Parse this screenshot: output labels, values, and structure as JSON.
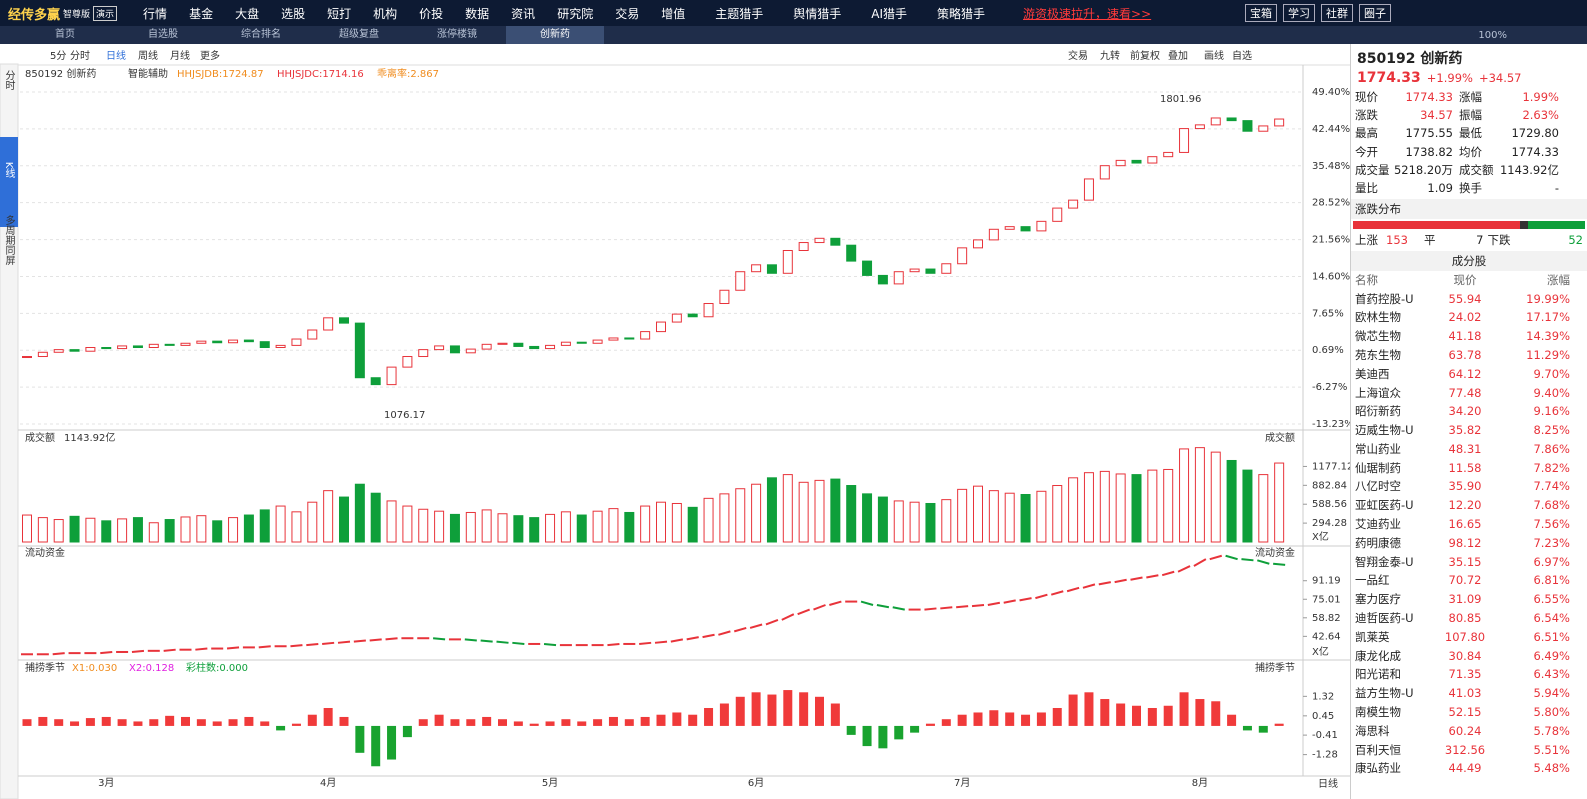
{
  "top_menu": {
    "logo": "经传多赢",
    "edition": "智尊版",
    "demo": "演示",
    "items": [
      "行情",
      "基金",
      "大盘",
      "选股",
      "短打",
      "机构",
      "价投",
      "数据",
      "资讯",
      "研究院",
      "交易",
      "增值",
      "主题猎手",
      "舆情猎手",
      "AI猎手",
      "策略猎手"
    ],
    "promo": "游资极速拉升，速看>>",
    "buttons": [
      "宝箱",
      "学习",
      "社群",
      "圈子"
    ]
  },
  "tabs": {
    "items": [
      "首页",
      "自选股",
      "综合排名",
      "超级复盘",
      "涨停楼镜",
      "创新药"
    ],
    "zoom": "100%"
  },
  "toolbar": {
    "left": [
      "5分",
      "分时",
      "日线",
      "周线",
      "月线",
      "更多"
    ],
    "right": [
      "交易",
      "九转",
      "前复权",
      "叠加",
      "画线",
      "自选"
    ]
  },
  "sidebar": [
    "分时",
    "K线",
    "多周期同屏"
  ],
  "chart_data": [
    {
      "type": "candlestick",
      "title": "850192 创新药",
      "assist": "智能辅助",
      "indicators": [
        {
          "label": "HHJSJDB:1724.87",
          "color": "#f08c1e"
        },
        {
          "label": "HHJSJDC:1714.16",
          "color": "#e8333a"
        },
        {
          "label": "乖离率:2.867",
          "color": "#f08c1e"
        }
      ],
      "annotations": [
        "1801.96",
        "1076.17"
      ],
      "period": "日线",
      "categories": [
        null,
        null,
        null,
        null,
        null,
        "3月",
        null,
        null,
        null,
        null,
        null,
        null,
        null,
        null,
        null,
        null,
        null,
        null,
        null,
        "4月",
        null,
        null,
        null,
        null,
        null,
        null,
        null,
        null,
        null,
        null,
        null,
        null,
        null,
        "5月",
        null,
        null,
        null,
        null,
        null,
        null,
        null,
        null,
        null,
        null,
        null,
        null,
        "6月",
        null,
        null,
        null,
        null,
        null,
        null,
        null,
        null,
        null,
        null,
        null,
        null,
        "7月",
        null,
        null,
        null,
        null,
        null,
        null,
        null,
        null,
        null,
        null,
        null,
        null,
        null,
        null,
        "8月",
        null,
        null,
        null,
        null,
        null
      ],
      "values": [
        -0.5,
        0.3,
        0.8,
        0.5,
        1.2,
        1.0,
        1.5,
        1.2,
        1.8,
        1.6,
        2.0,
        2.4,
        2.1,
        2.6,
        2.3,
        1.2,
        1.6,
        2.8,
        4.5,
        6.8,
        5.8,
        -4.5,
        -5.8,
        -2.5,
        -0.5,
        0.8,
        1.5,
        0.2,
        0.9,
        1.8,
        2.0,
        1.4,
        1.0,
        1.6,
        2.2,
        2.0,
        2.6,
        3.0,
        2.8,
        4.2,
        6.0,
        7.5,
        7.0,
        9.5,
        12.0,
        15.5,
        16.8,
        15.2,
        19.5,
        21.0,
        21.8,
        20.5,
        17.5,
        14.8,
        13.2,
        15.5,
        16.0,
        15.2,
        17.0,
        20.0,
        21.5,
        23.5,
        24.0,
        23.2,
        25.0,
        27.5,
        29.0,
        33.0,
        35.5,
        36.5,
        36.0,
        37.2,
        38.0,
        42.5,
        43.2,
        44.5,
        44.0,
        42.0,
        43.0,
        44.3
      ],
      "up_color": "#e8333a",
      "down_color": "#0e9f3a",
      "ylim": [
        -13.23,
        49.4
      ],
      "yticks": [
        {
          "value": 49.4,
          "label": "49.40%"
        },
        {
          "value": 42.44,
          "label": "42.44%"
        },
        {
          "value": 35.48,
          "label": "35.48%"
        },
        {
          "value": 28.52,
          "label": "28.52%"
        },
        {
          "value": 21.56,
          "label": "21.56%"
        },
        {
          "value": 14.6,
          "label": "14.60%"
        },
        {
          "value": 7.65,
          "label": "7.65%"
        },
        {
          "value": 0.69,
          "label": "0.69%"
        },
        {
          "value": -6.27,
          "label": "-6.27%"
        },
        {
          "value": -13.23,
          "label": "-13.23%"
        }
      ],
      "grid": true
    },
    {
      "type": "bar",
      "title": "成交额",
      "value_text": "1143.92亿",
      "side_title": "成交额",
      "unit": "X亿",
      "values": [
        420,
        380,
        350,
        400,
        370,
        330,
        360,
        380,
        300,
        350,
        390,
        410,
        330,
        380,
        420,
        500,
        560,
        470,
        620,
        800,
        700,
        900,
        760,
        640,
        560,
        510,
        480,
        430,
        460,
        500,
        440,
        410,
        380,
        430,
        470,
        420,
        480,
        520,
        460,
        560,
        620,
        600,
        540,
        680,
        750,
        830,
        900,
        1000,
        1050,
        930,
        960,
        980,
        880,
        750,
        700,
        640,
        620,
        600,
        660,
        820,
        870,
        800,
        760,
        740,
        790,
        880,
        1000,
        1080,
        1100,
        1060,
        1050,
        1120,
        1130,
        1450,
        1470,
        1400,
        1270,
        1120,
        1050,
        1230
      ],
      "ylim": [
        0,
        1480
      ],
      "yticks": [
        294.28,
        588.56,
        882.84,
        1177.12
      ]
    },
    {
      "type": "dash-line",
      "title": "流动资金",
      "side_title": "流动资金",
      "unit": "X亿",
      "values": [
        27,
        27,
        28,
        28,
        28,
        29,
        29,
        30,
        30,
        31,
        31,
        32,
        32,
        33,
        33,
        34,
        34,
        35,
        36,
        37,
        38,
        39,
        40,
        41,
        41,
        41,
        40,
        40,
        39,
        38,
        37,
        36,
        36,
        35,
        35,
        35,
        35,
        36,
        36,
        37,
        38,
        40,
        42,
        44,
        47,
        50,
        53,
        57,
        62,
        66,
        70,
        73,
        73,
        70,
        68,
        66,
        66,
        67,
        68,
        69,
        70,
        72,
        74,
        76,
        79,
        82,
        85,
        88,
        90,
        92,
        94,
        96,
        99,
        104,
        110,
        113,
        110,
        109,
        106,
        105
      ],
      "ylim": [
        22,
        118
      ],
      "yticks": [
        42.64,
        58.82,
        75.01,
        91.19
      ]
    },
    {
      "type": "oscillator",
      "title": "捕捞季节",
      "side_title": "捕捞季节",
      "indicators": [
        {
          "label": "X1:0.030",
          "color": "#f08c1e"
        },
        {
          "label": "X2:0.128",
          "color": "#e020e0"
        },
        {
          "label": "彩柱数:0.000",
          "color": "#0e9f3a"
        }
      ],
      "values": [
        0.3,
        0.4,
        0.3,
        0.2,
        0.35,
        0.4,
        0.3,
        0.2,
        0.3,
        0.45,
        0.4,
        0.3,
        0.2,
        0.3,
        0.4,
        0.2,
        -0.2,
        0.1,
        0.5,
        0.8,
        0.4,
        -1.2,
        -1.8,
        -1.5,
        -0.5,
        0.3,
        0.5,
        0.3,
        0.3,
        0.4,
        0.3,
        0.2,
        0.1,
        0.2,
        0.3,
        0.2,
        0.3,
        0.4,
        0.3,
        0.4,
        0.5,
        0.6,
        0.5,
        0.8,
        1.0,
        1.3,
        1.5,
        1.4,
        1.6,
        1.5,
        1.3,
        1.0,
        -0.4,
        -0.9,
        -1.0,
        -0.6,
        -0.3,
        0.1,
        0.3,
        0.5,
        0.6,
        0.7,
        0.6,
        0.5,
        0.6,
        0.8,
        1.4,
        1.5,
        1.2,
        1.0,
        0.9,
        0.8,
        0.9,
        1.5,
        1.2,
        1.1,
        0.5,
        -0.2,
        -0.3,
        0.1
      ],
      "ylim": [
        -2.19,
        1.96
      ],
      "yticks": [
        1.32,
        0.45,
        -0.41,
        -1.28
      ]
    }
  ],
  "quote": {
    "title": "850192 创新药",
    "price": "1774.33",
    "pct": "+1.99%",
    "change": "+34.57",
    "rows": [
      [
        "现价",
        "1774.33",
        "涨幅",
        "1.99%"
      ],
      [
        "涨跌",
        "34.57",
        "振幅",
        "2.63%"
      ],
      [
        "最高",
        "1775.55",
        "最低",
        "1729.80"
      ],
      [
        "今开",
        "1738.82",
        "均价",
        "1774.33"
      ],
      [
        "成交量",
        "5218.20万",
        "成交额",
        "1143.92亿"
      ],
      [
        "量比",
        "1.09",
        "换手",
        "-"
      ]
    ]
  },
  "distribution": {
    "title": "涨跌分布",
    "up_label": "上涨",
    "up": 153,
    "flat_label": "平",
    "flat": 7,
    "down_label": "下跌",
    "down": 52
  },
  "constituents": {
    "title": "成分股",
    "header": [
      "名称",
      "现价",
      "涨幅"
    ],
    "rows": [
      [
        "首药控股-U",
        "55.94",
        "19.99%"
      ],
      [
        "欧林生物",
        "24.02",
        "17.17%"
      ],
      [
        "微芯生物",
        "41.18",
        "14.39%"
      ],
      [
        "苑东生物",
        "63.78",
        "11.29%"
      ],
      [
        "美迪西",
        "64.12",
        "9.70%"
      ],
      [
        "上海谊众",
        "77.48",
        "9.40%"
      ],
      [
        "昭衍新药",
        "34.20",
        "9.16%"
      ],
      [
        "迈威生物-U",
        "35.82",
        "8.25%"
      ],
      [
        "常山药业",
        "48.31",
        "7.86%"
      ],
      [
        "仙琚制药",
        "11.58",
        "7.82%"
      ],
      [
        "八亿时空",
        "35.90",
        "7.74%"
      ],
      [
        "亚虹医药-U",
        "12.20",
        "7.68%"
      ],
      [
        "艾迪药业",
        "16.65",
        "7.56%"
      ],
      [
        "药明康德",
        "98.12",
        "7.23%"
      ],
      [
        "智翔金泰-U",
        "35.15",
        "6.97%"
      ],
      [
        "一品红",
        "70.72",
        "6.81%"
      ],
      [
        "塞力医疗",
        "31.09",
        "6.55%"
      ],
      [
        "迪哲医药-U",
        "80.85",
        "6.54%"
      ],
      [
        "凯莱英",
        "107.80",
        "6.51%"
      ],
      [
        "康龙化成",
        "30.84",
        "6.49%"
      ],
      [
        "阳光诺和",
        "71.35",
        "6.43%"
      ],
      [
        "益方生物-U",
        "41.03",
        "5.94%"
      ],
      [
        "南模生物",
        "52.15",
        "5.80%"
      ],
      [
        "海思科",
        "60.24",
        "5.78%"
      ],
      [
        "百利天恒",
        "312.56",
        "5.51%"
      ],
      [
        "康弘药业",
        "44.49",
        "5.48%"
      ]
    ]
  }
}
